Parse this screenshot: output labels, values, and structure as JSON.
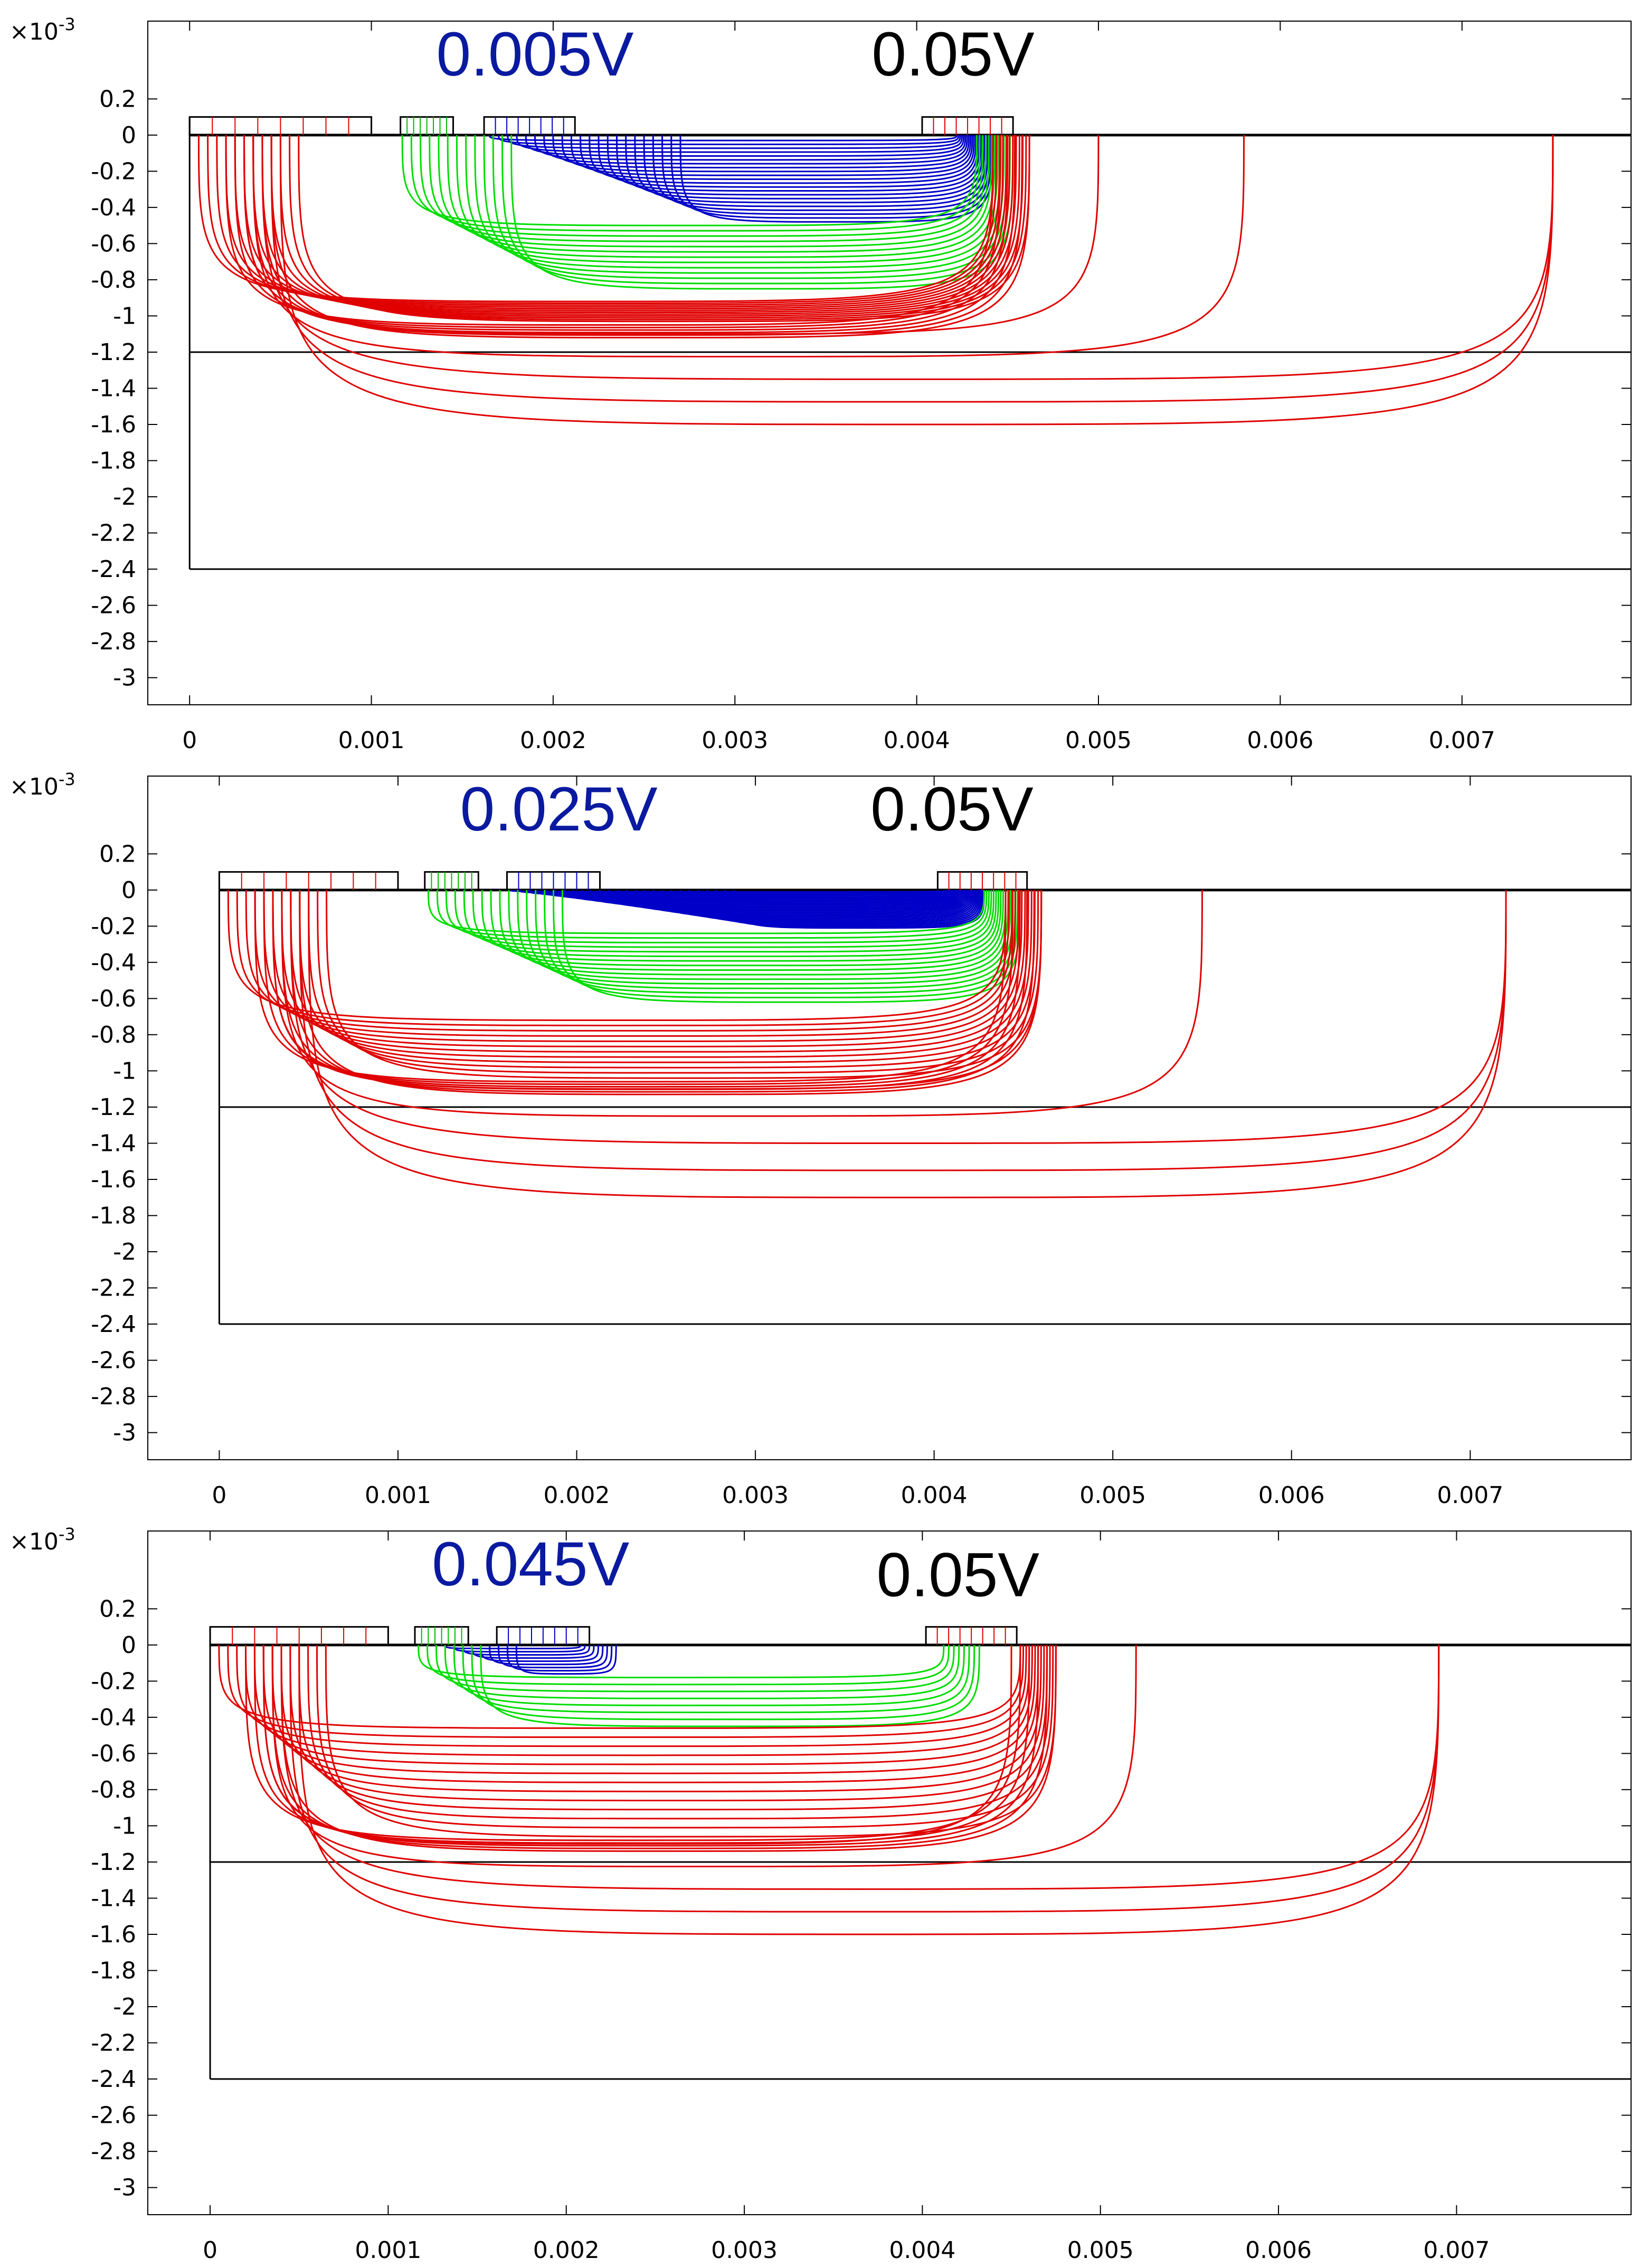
{
  "chart_data": [
    {
      "type": "line",
      "exponent_label": "×10",
      "exponent": "-3",
      "annotations": [
        {
          "text": "0.005V",
          "color": "#0a1aa0",
          "x": 0.0019,
          "y": 0.00033
        },
        {
          "text": "0.05V",
          "color": "#000000",
          "x": 0.0042,
          "y": 0.00033
        }
      ],
      "xticks": [
        "0",
        "0.001",
        "0.002",
        "0.003",
        "0.004",
        "0.005",
        "0.006",
        "0.007"
      ],
      "yticks": [
        "0.2",
        "0",
        "-0.2",
        "-0.4",
        "-0.6",
        "-0.8",
        "-1",
        "-1.2",
        "-1.4",
        "-1.6",
        "-1.8",
        "-2",
        "-2.2",
        "-2.4",
        "-2.6",
        "-2.8",
        "-3"
      ],
      "xlim": [
        -0.00023,
        0.00793
      ],
      "ylim": [
        -0.00315,
        0.00063
      ],
      "grid": false,
      "geometry": {
        "left_plate": [
          0,
          0.001
        ],
        "green_plate": [
          0.00116,
          0.00145
        ],
        "blue_plate": [
          0.00162,
          0.00212
        ],
        "right_plate": [
          0.00403,
          0.00453
        ],
        "layer_interface": -0.0012,
        "bottom": -0.0024
      },
      "series": [
        {
          "color": "#0000c8",
          "n": 22,
          "x_left": 0.00165,
          "x_right": 0.00422,
          "depth_min": 3e-05,
          "depth_max": 0.00048
        },
        {
          "color": "#00dd00",
          "n": 13,
          "x_left": 0.00117,
          "x_right": 0.00433,
          "depth_min": 0.0005,
          "depth_max": 0.00085
        },
        {
          "color": "#e00000",
          "n": 12,
          "x_left": 5e-05,
          "x_right": 0.00442,
          "depth_min": 0.00092,
          "depth_max": 0.00103
        },
        {
          "color": "#e00000",
          "n": 6,
          "x_left": 0.0002,
          "x_right": 0.00442,
          "depth_min": 0.00105,
          "depth_max": 0.00112
        },
        {
          "color": "#e00000",
          "n": 5,
          "x_left": 0.0003,
          "x_right": 0.00445,
          "depth_min": 0.0011,
          "depth_max": 0.0016,
          "ext": [
            0.005,
            0.0058,
            0.0075
          ]
        }
      ]
    },
    {
      "type": "line",
      "exponent_label": "×10",
      "exponent": "-3",
      "annotations": [
        {
          "text": "0.025V",
          "color": "#0a1aa0",
          "x": 0.0019,
          "y": 0.00033
        },
        {
          "text": "0.05V",
          "color": "#000000",
          "x": 0.0041,
          "y": 0.00033
        }
      ],
      "xticks": [
        "0",
        "0.001",
        "0.002",
        "0.003",
        "0.004",
        "0.005",
        "0.006",
        "0.007"
      ],
      "yticks": [
        "0.2",
        "0",
        "-0.2",
        "-0.4",
        "-0.6",
        "-0.8",
        "-1",
        "-1.2",
        "-1.4",
        "-1.6",
        "-1.8",
        "-2",
        "-2.2",
        "-2.4",
        "-2.6",
        "-2.8",
        "-3"
      ],
      "xlim": [
        -0.0004,
        0.0079
      ],
      "ylim": [
        -0.00315,
        0.00063
      ],
      "grid": false,
      "geometry": {
        "left_plate": [
          0,
          0.001
        ],
        "green_plate": [
          0.00115,
          0.00145
        ],
        "blue_plate": [
          0.00161,
          0.00213
        ],
        "right_plate": [
          0.00402,
          0.00452
        ],
        "layer_interface": -0.0012,
        "bottom": -0.0024
      },
      "series": [
        {
          "color": "#0000c8",
          "n": 26,
          "x_left": 0.00163,
          "x_right": 0.00408,
          "depth_min": 1e-05,
          "depth_max": 0.00021
        },
        {
          "color": "#00dd00",
          "n": 16,
          "x_left": 0.00117,
          "x_right": 0.00428,
          "depth_min": 0.00024,
          "depth_max": 0.00062
        },
        {
          "color": "#e00000",
          "n": 12,
          "x_left": 5e-05,
          "x_right": 0.0044,
          "depth_min": 0.00072,
          "depth_max": 0.00104
        },
        {
          "color": "#e00000",
          "n": 6,
          "x_left": 0.0002,
          "x_right": 0.0044,
          "depth_min": 0.00106,
          "depth_max": 0.00113
        },
        {
          "color": "#e00000",
          "n": 5,
          "x_left": 0.0003,
          "x_right": 0.00445,
          "depth_min": 0.0011,
          "depth_max": 0.0017,
          "ext": [
            0.0046,
            0.0055,
            0.0072
          ]
        }
      ]
    },
    {
      "type": "line",
      "exponent_label": "×10",
      "exponent": "-3",
      "annotations": [
        {
          "text": "0.045V",
          "color": "#0a1aa0",
          "x": 0.0018,
          "y": 0.00033
        },
        {
          "text": "0.05V",
          "color": "#000000",
          "x": 0.0042,
          "y": 0.00027
        }
      ],
      "xticks": [
        "0",
        "0.001",
        "0.002",
        "0.003",
        "0.004",
        "0.005",
        "0.006",
        "0.007"
      ],
      "yticks": [
        "0.2",
        "0",
        "-0.2",
        "-0.4",
        "-0.6",
        "-0.8",
        "-1",
        "-1.2",
        "-1.4",
        "-1.6",
        "-1.8",
        "-2",
        "-2.2",
        "-2.4",
        "-2.6",
        "-2.8",
        "-3"
      ],
      "xlim": [
        -0.00035,
        0.00798
      ],
      "ylim": [
        -0.00315,
        0.00063
      ],
      "grid": false,
      "geometry": {
        "left_plate": [
          0,
          0.001
        ],
        "green_plate": [
          0.00115,
          0.00145
        ],
        "blue_plate": [
          0.00161,
          0.00213
        ],
        "right_plate": [
          0.00402,
          0.00453
        ],
        "layer_interface": -0.0012,
        "bottom": -0.0024
      },
      "series": [
        {
          "color": "#0000c8",
          "n": 9,
          "x_left": 0.00132,
          "x_right": 0.00208,
          "depth_min": 2e-05,
          "depth_max": 0.00016
        },
        {
          "color": "#00dd00",
          "n": 8,
          "x_left": 0.00117,
          "x_right": 0.00412,
          "depth_min": 0.00018,
          "depth_max": 0.00045
        },
        {
          "color": "#e00000",
          "n": 13,
          "x_left": 5e-05,
          "x_right": 0.00455,
          "depth_min": 0.00046,
          "depth_max": 0.00106
        },
        {
          "color": "#e00000",
          "n": 5,
          "x_left": 0.0002,
          "x_right": 0.00455,
          "depth_min": 0.00108,
          "depth_max": 0.00114
        },
        {
          "color": "#e00000",
          "n": 5,
          "x_left": 0.0003,
          "x_right": 0.0046,
          "depth_min": 0.0011,
          "depth_max": 0.0016,
          "ext": [
            0.0045,
            0.0052,
            0.0069
          ]
        }
      ]
    }
  ]
}
